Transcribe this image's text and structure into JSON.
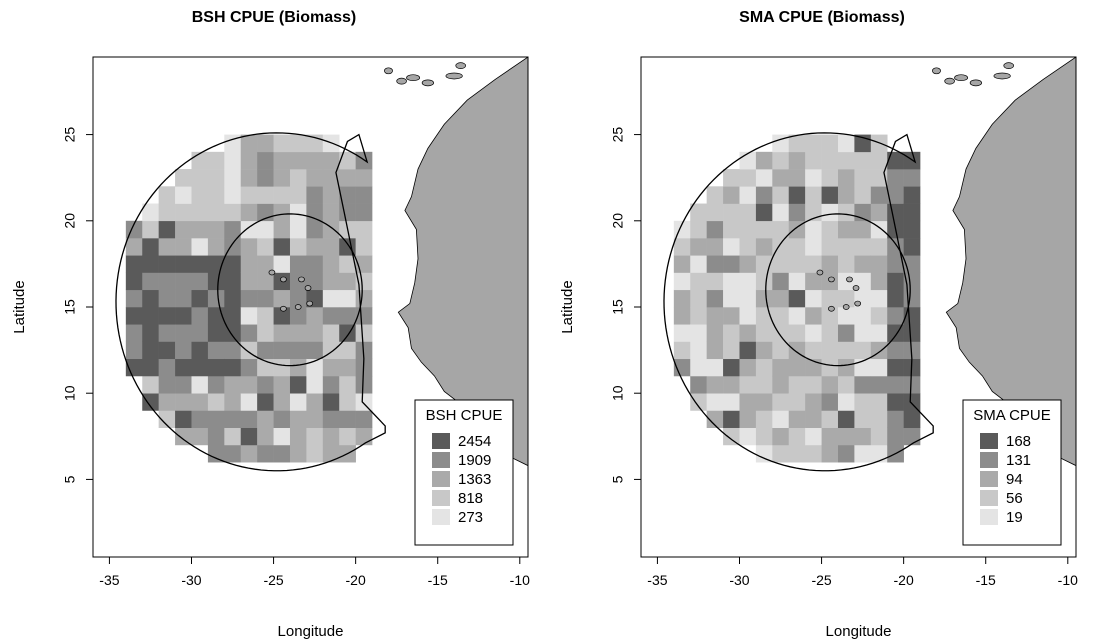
{
  "panels": [
    {
      "id": "bsh",
      "title": "BSH CPUE (Biomass)",
      "xlabel": "Longitude",
      "ylabel": "Latitude",
      "legend_title": "BSH CPUE",
      "legend_labels": [
        "2454",
        "1909",
        "1363",
        "818",
        "273"
      ]
    },
    {
      "id": "sma",
      "title": "SMA CPUE (Biomass)",
      "xlabel": "Longitude",
      "ylabel": "Latitude",
      "legend_title": "SMA CPUE",
      "legend_labels": [
        "168",
        "131",
        "94",
        "56",
        "19"
      ]
    }
  ],
  "axes": {
    "x_ticks": [
      -35,
      -30,
      -25,
      -20,
      -15,
      -10
    ],
    "y_ticks": [
      5,
      10,
      15,
      20,
      25
    ],
    "xlim": [
      -36,
      -9.5
    ],
    "ylim": [
      0.5,
      29.5
    ]
  },
  "colors": {
    "class_1": "#5a5a5a",
    "class_2": "#8c8c8c",
    "class_3": "#aaaaaa",
    "class_4": "#c8c8c8",
    "class_5": "#e4e4e4",
    "land": "#a6a6a6",
    "outline": "#000000"
  }
}
